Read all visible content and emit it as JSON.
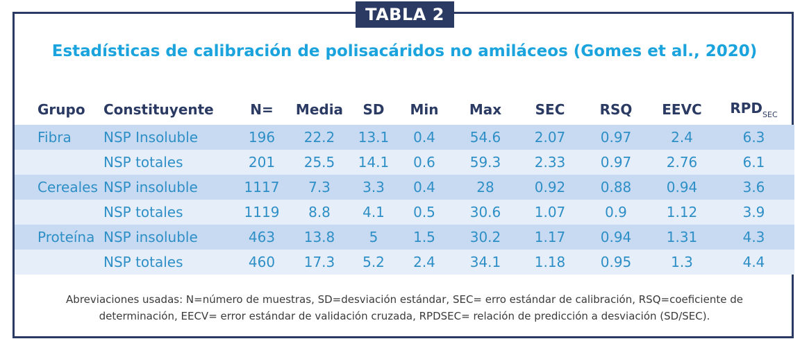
{
  "badge": "TABLA 2",
  "title": "Estadísticas de calibración de polisacáridos no amiláceos (Gomes et al., 2020)",
  "table": {
    "headers": {
      "grupo": "Grupo",
      "constituyente": "Constituyente",
      "n": "N=",
      "media": "Media",
      "sd": "SD",
      "min": "Min",
      "max": "Max",
      "sec": "SEC",
      "rsq": "RSQ",
      "eevc": "EEVC",
      "rpd": "RPD",
      "rpd_sub": "SEC"
    },
    "rows": [
      {
        "grupo": "Fibra",
        "constituyente": "NSP Insoluble",
        "n": "196",
        "media": "22.2",
        "sd": "13.1",
        "min": "0.4",
        "max": "54.6",
        "sec": "2.07",
        "rsq": "0.97",
        "eevc": "2.4",
        "rpd": "6.3"
      },
      {
        "grupo": "",
        "constituyente": "NSP totales",
        "n": "201",
        "media": "25.5",
        "sd": "14.1",
        "min": "0.6",
        "max": "59.3",
        "sec": "2.33",
        "rsq": "0.97",
        "eevc": "2.76",
        "rpd": "6.1"
      },
      {
        "grupo": "Cereales",
        "constituyente": "NSP insoluble",
        "n": "1117",
        "media": "7.3",
        "sd": "3.3",
        "min": "0.4",
        "max": "28",
        "sec": "0.92",
        "rsq": "0.88",
        "eevc": "0.94",
        "rpd": "3.6"
      },
      {
        "grupo": "",
        "constituyente": "NSP totales",
        "n": "1119",
        "media": "8.8",
        "sd": "4.1",
        "min": "0.5",
        "max": "30.6",
        "sec": "1.07",
        "rsq": "0.9",
        "eevc": "1.12",
        "rpd": "3.9"
      },
      {
        "grupo": "Proteína",
        "constituyente": "NSP insoluble",
        "n": "463",
        "media": "13.8",
        "sd": "5",
        "min": "1.5",
        "max": "30.2",
        "sec": "1.17",
        "rsq": "0.94",
        "eevc": "1.31",
        "rpd": "4.3"
      },
      {
        "grupo": "",
        "constituyente": "NSP totales",
        "n": "460",
        "media": "17.3",
        "sd": "5.2",
        "min": "2.4",
        "max": "34.1",
        "sec": "1.18",
        "rsq": "0.95",
        "eevc": "1.3",
        "rpd": "4.4"
      }
    ]
  },
  "footnote": {
    "line1": "Abreviaciones usadas: N=número de muestras, SD=desviación estándar, SEC= erro estándar de calibración, RSQ=coeficiente de",
    "line2": "determinación, EECV= error estándar de validación cruzada, RPDSEC= relación de predicción a desviación (SD/SEC)."
  },
  "colors": {
    "frame": "#2b3a63",
    "title": "#1aa3dc",
    "cell_text": "#2e8fc7",
    "row_dark": "#c8daf1",
    "row_light": "#e6eef9"
  }
}
